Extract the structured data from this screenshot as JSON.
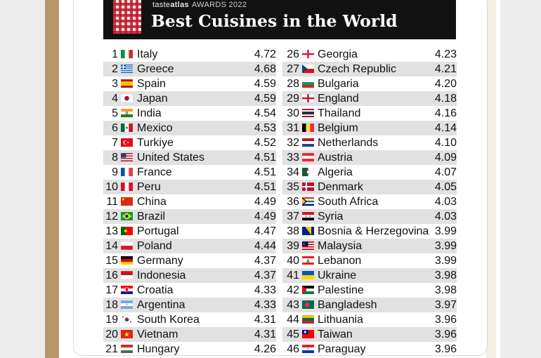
{
  "header": {
    "brand_first": "taste",
    "brand_second": "atlas",
    "awards": "AWARDS 2022",
    "title": "Best Cuisines in the World"
  },
  "left_column": [
    {
      "rank": "1",
      "country": "Italy",
      "score": "4.72",
      "flag": "italy-flag"
    },
    {
      "rank": "2",
      "country": "Greece",
      "score": "4.68",
      "flag": "greece-flag"
    },
    {
      "rank": "3",
      "country": "Spain",
      "score": "4.59",
      "flag": "spain-flag"
    },
    {
      "rank": "4",
      "country": "Japan",
      "score": "4.59",
      "flag": "japan-flag"
    },
    {
      "rank": "5",
      "country": "India",
      "score": "4.54",
      "flag": "india-flag"
    },
    {
      "rank": "6",
      "country": "Mexico",
      "score": "4.53",
      "flag": "mexico-flag"
    },
    {
      "rank": "7",
      "country": "Turkiye",
      "score": "4.52",
      "flag": "turkiye-flag"
    },
    {
      "rank": "8",
      "country": "United States",
      "score": "4.51",
      "flag": "united-states-flag"
    },
    {
      "rank": "9",
      "country": "France",
      "score": "4.51",
      "flag": "france-flag"
    },
    {
      "rank": "10",
      "country": "Peru",
      "score": "4.51",
      "flag": "peru-flag"
    },
    {
      "rank": "11",
      "country": "China",
      "score": "4.49",
      "flag": "china-flag"
    },
    {
      "rank": "12",
      "country": "Brazil",
      "score": "4.49",
      "flag": "brazil-flag"
    },
    {
      "rank": "13",
      "country": "Portugal",
      "score": "4.47",
      "flag": "portugal-flag"
    },
    {
      "rank": "14",
      "country": "Poland",
      "score": "4.44",
      "flag": "poland-flag"
    },
    {
      "rank": "15",
      "country": "Germany",
      "score": "4.37",
      "flag": "germany-flag"
    },
    {
      "rank": "16",
      "country": "Indonesia",
      "score": "4.37",
      "flag": "indonesia-flag"
    },
    {
      "rank": "17",
      "country": "Croatia",
      "score": "4.33",
      "flag": "croatia-flag"
    },
    {
      "rank": "18",
      "country": "Argentina",
      "score": "4.33",
      "flag": "argentina-flag"
    },
    {
      "rank": "19",
      "country": "South Korea",
      "score": "4.31",
      "flag": "south-korea-flag"
    },
    {
      "rank": "20",
      "country": "Vietnam",
      "score": "4.31",
      "flag": "vietnam-flag"
    },
    {
      "rank": "21",
      "country": "Hungary",
      "score": "4.26",
      "flag": "hungary-flag"
    }
  ],
  "right_column": [
    {
      "rank": "26",
      "country": "Georgia",
      "score": "4.23",
      "flag": "georgia-flag"
    },
    {
      "rank": "27",
      "country": "Czech Republic",
      "score": "4.21",
      "flag": "czech-republic-flag"
    },
    {
      "rank": "28",
      "country": "Bulgaria",
      "score": "4.20",
      "flag": "bulgaria-flag"
    },
    {
      "rank": "29",
      "country": "England",
      "score": "4.18",
      "flag": "england-flag"
    },
    {
      "rank": "30",
      "country": "Thailand",
      "score": "4.16",
      "flag": "thailand-flag"
    },
    {
      "rank": "31",
      "country": "Belgium",
      "score": "4.14",
      "flag": "belgium-flag"
    },
    {
      "rank": "32",
      "country": "Netherlands",
      "score": "4.10",
      "flag": "netherlands-flag"
    },
    {
      "rank": "33",
      "country": "Austria",
      "score": "4.09",
      "flag": "austria-flag"
    },
    {
      "rank": "34",
      "country": "Algeria",
      "score": "4.07",
      "flag": "algeria-flag"
    },
    {
      "rank": "35",
      "country": "Denmark",
      "score": "4.05",
      "flag": "denmark-flag"
    },
    {
      "rank": "36",
      "country": "South Africa",
      "score": "4.03",
      "flag": "south-africa-flag"
    },
    {
      "rank": "37",
      "country": "Syria",
      "score": "4.03",
      "flag": "syria-flag"
    },
    {
      "rank": "38",
      "country": "Bosnia & Herzegovina",
      "score": "3.99",
      "flag": "bosnia-herzegovina-flag"
    },
    {
      "rank": "39",
      "country": "Malaysia",
      "score": "3.99",
      "flag": "malaysia-flag"
    },
    {
      "rank": "40",
      "country": "Lebanon",
      "score": "3.99",
      "flag": "lebanon-flag"
    },
    {
      "rank": "41",
      "country": "Ukraine",
      "score": "3.98",
      "flag": "ukraine-flag"
    },
    {
      "rank": "42",
      "country": "Palestine",
      "score": "3.98",
      "flag": "palestine-flag"
    },
    {
      "rank": "43",
      "country": "Bangladesh",
      "score": "3.97",
      "flag": "bangladesh-flag"
    },
    {
      "rank": "44",
      "country": "Lithuania",
      "score": "3.96",
      "flag": "lithuania-flag"
    },
    {
      "rank": "45",
      "country": "Taiwan",
      "score": "3.96",
      "flag": "taiwan-flag"
    },
    {
      "rank": "46",
      "country": "Paraguay",
      "score": "3.96",
      "flag": "paraguay-flag"
    }
  ],
  "colors": {
    "banner_bg": "#111111",
    "row_shade": "#e1e1e1",
    "frame_tan": "#b89868"
  }
}
